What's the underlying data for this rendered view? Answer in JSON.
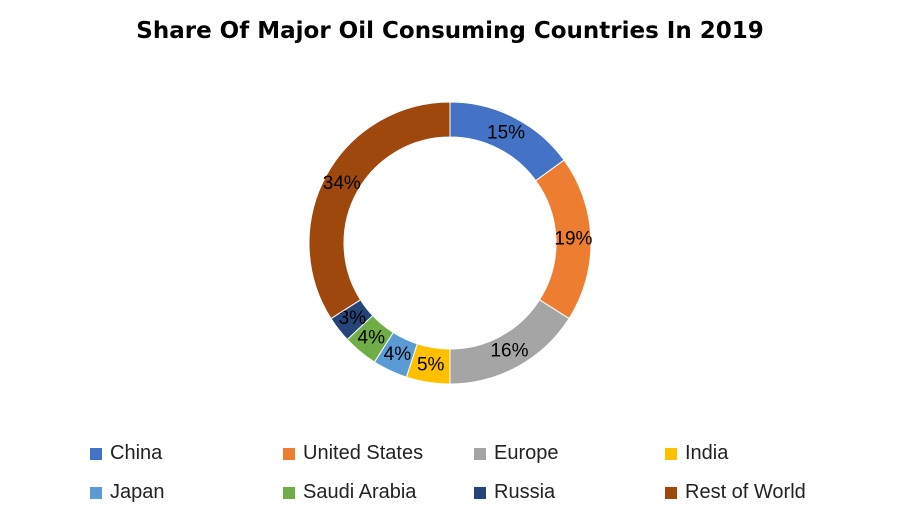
{
  "chart_data": {
    "type": "pie",
    "variant": "donut",
    "title": "Share Of Major Oil Consuming Countries In 2019",
    "categories": [
      "China",
      "United States",
      "Europe",
      "India",
      "Japan",
      "Saudi Arabia",
      "Russia",
      "Rest of World"
    ],
    "values": [
      15,
      19,
      16,
      5,
      4,
      4,
      3,
      34
    ],
    "value_labels": [
      "15%",
      "19%",
      "16%",
      "5%",
      "4%",
      "4%",
      "3%",
      "34%"
    ],
    "colors": [
      "#4472C4",
      "#ED7D31",
      "#A5A5A5",
      "#FFC000",
      "#5B9BD5",
      "#70AD47",
      "#264478",
      "#9E480E"
    ],
    "legend_position": "bottom"
  }
}
